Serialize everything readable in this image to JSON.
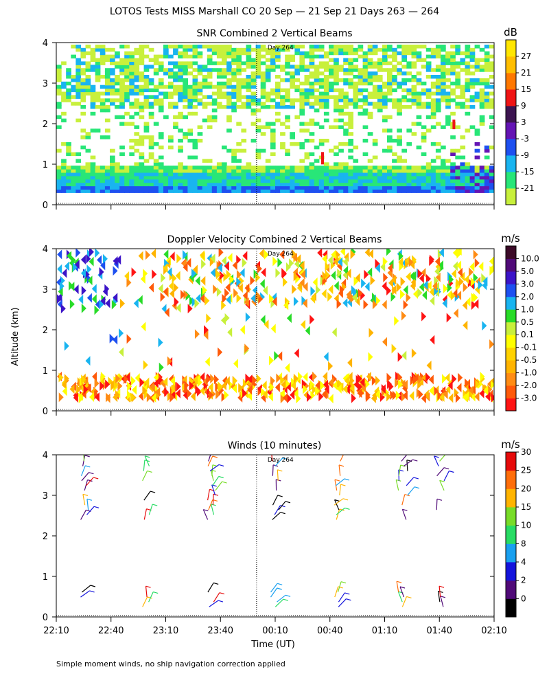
{
  "figure": {
    "title": "LOTOS Tests MISS Marshall CO  20 Sep — 21 Sep 21 Days 263 — 264",
    "ylabel": "Altitude (km)",
    "xlabel": "Time (UT)",
    "footnote": "Simple moment winds, no ship navigation correction applied",
    "day_marker": "Day 264"
  },
  "chart_data": [
    {
      "type": "heatmap",
      "title": "SNR Combined 2 Vertical Beams",
      "units": "dB",
      "ylim": [
        0,
        4
      ],
      "yticks": [
        "0",
        "1",
        "2",
        "3",
        "4"
      ],
      "xticks": [
        "22:10",
        "22:40",
        "23:10",
        "23:40",
        "00:10",
        "00:40",
        "01:10",
        "01:40",
        "02:10"
      ],
      "colorbar_labels": [
        "-21",
        "-15",
        "-9",
        "-3",
        "3",
        "9",
        "15",
        "21",
        "27"
      ],
      "colors": [
        "#c8f03c",
        "#28e678",
        "#19b4f0",
        "#1e50f0",
        "#6414b4",
        "#3c1450",
        "#f01414",
        "#ff7800",
        "#ffbe00",
        "#ffe600"
      ],
      "day_boundary_hours": 1.83
    },
    {
      "type": "heatmap",
      "title": "Doppler Velocity Combined 2 Vertical Beams",
      "units": "m/s",
      "ylim": [
        0,
        4
      ],
      "yticks": [
        "0",
        "1",
        "2",
        "3",
        "4"
      ],
      "xticks": [
        "22:10",
        "22:40",
        "23:10",
        "23:40",
        "00:10",
        "00:40",
        "01:10",
        "01:40",
        "02:10"
      ],
      "colorbar_labels": [
        "-3.0",
        "-2.0",
        "-1.0",
        "-0.5",
        "-0.1",
        "0.1",
        "0.5",
        "1.0",
        "2.0",
        "3.0",
        "5.0",
        "10.0"
      ],
      "colors": [
        "#ff1414",
        "#ff5a0a",
        "#ff8c14",
        "#ffb400",
        "#ffd200",
        "#ffff00",
        "#c8f03c",
        "#28dc28",
        "#19b4f0",
        "#1e50f0",
        "#3c14c8",
        "#500a78",
        "#3c0a28"
      ],
      "day_boundary_hours": 1.83
    },
    {
      "type": "wind-barbs",
      "title": "Winds (10 minutes)",
      "units": "m/s",
      "ylim": [
        0,
        4
      ],
      "yticks": [
        "0",
        "1",
        "2",
        "3",
        "4"
      ],
      "xticks": [
        "22:10",
        "22:40",
        "23:10",
        "23:40",
        "00:10",
        "00:40",
        "01:10",
        "01:40",
        "02:10"
      ],
      "colorbar_labels": [
        "0",
        "2",
        "4",
        "8",
        "10",
        "15",
        "20",
        "25",
        "30"
      ],
      "colors": [
        "#000000",
        "#500a78",
        "#1414dc",
        "#19a0f0",
        "#28dc64",
        "#78dc28",
        "#ffb400",
        "#ff6e0a",
        "#e60a0a"
      ],
      "day_boundary_hours": 1.83,
      "profile_times_hours": [
        0.25,
        0.83,
        1.42,
        2.0,
        2.58,
        3.17,
        3.5
      ]
    }
  ]
}
